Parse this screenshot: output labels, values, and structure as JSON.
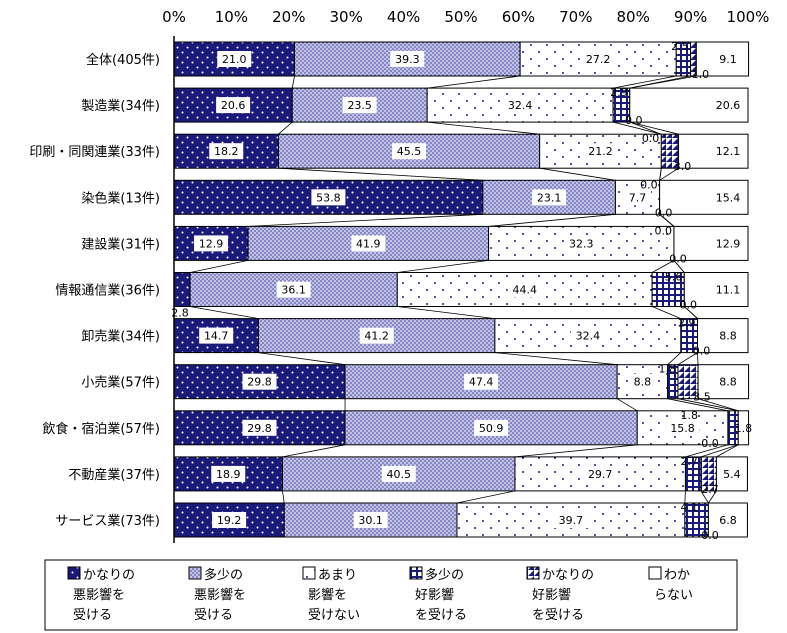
{
  "chart_data": {
    "type": "bar",
    "orientation": "horizontal",
    "stacked": true,
    "percent_scale": true,
    "xlim": [
      0,
      100
    ],
    "x_ticks": [
      "0%",
      "10%",
      "20%",
      "30%",
      "40%",
      "50%",
      "60%",
      "70%",
      "80%",
      "90%",
      "100%"
    ],
    "grid": false,
    "legend_position": "bottom",
    "categories": [
      "全体(405件)",
      "製造業(34件)",
      "印刷・同関連業(33件)",
      "染色業(13件)",
      "建設業(31件)",
      "情報通信業(36件)",
      "卸売業(34件)",
      "小売業(57件)",
      "飲食・宿泊業(57件)",
      "不動産業(37件)",
      "サービス業(73件)"
    ],
    "series": [
      {
        "name": "かなりの悪影響を受ける",
        "legend_lines": [
          "かなりの",
          "悪影響を",
          "受ける"
        ],
        "values": [
          21.0,
          20.6,
          18.2,
          53.8,
          12.9,
          2.8,
          14.7,
          29.8,
          29.8,
          18.9,
          19.2
        ]
      },
      {
        "name": "多少の悪影響を受ける",
        "legend_lines": [
          "多少の",
          "悪影響を",
          "受ける"
        ],
        "values": [
          39.3,
          23.5,
          45.5,
          23.1,
          41.9,
          36.1,
          41.2,
          47.4,
          50.9,
          40.5,
          30.1
        ]
      },
      {
        "name": "あまり影響を受けない",
        "legend_lines": [
          "あまり",
          "影響を",
          "受けない"
        ],
        "values": [
          27.2,
          32.4,
          21.2,
          7.7,
          32.3,
          44.4,
          32.4,
          8.8,
          15.8,
          29.7,
          39.7
        ]
      },
      {
        "name": "多少の好影響を受ける",
        "legend_lines": [
          "多少の",
          "好影響",
          "を受ける"
        ],
        "values": [
          2.5,
          2.9,
          0.0,
          0.0,
          0.0,
          5.6,
          2.9,
          1.8,
          1.8,
          2.7,
          4.1
        ]
      },
      {
        "name": "かなりの好影響を受ける",
        "legend_lines": [
          "かなりの",
          "好影響",
          "を受ける"
        ],
        "values": [
          1.0,
          0.0,
          3.0,
          0.0,
          0.0,
          0.0,
          0.0,
          3.5,
          0.0,
          2.7,
          0.0
        ]
      },
      {
        "name": "わからない",
        "legend_lines": [
          "わか",
          "らない"
        ],
        "values": [
          9.1,
          20.6,
          12.1,
          15.4,
          12.9,
          11.1,
          8.8,
          8.8,
          1.8,
          5.4,
          6.8
        ]
      }
    ],
    "colors": {
      "bad_strong": "#1a1a7a",
      "bad_some": "#c4c4e6",
      "neutral": "#ffffff",
      "good_some": "#ffffff",
      "good_strong": "#1a1a7a",
      "unknown": "#ffffff",
      "accent": "#1a1a7a"
    }
  }
}
